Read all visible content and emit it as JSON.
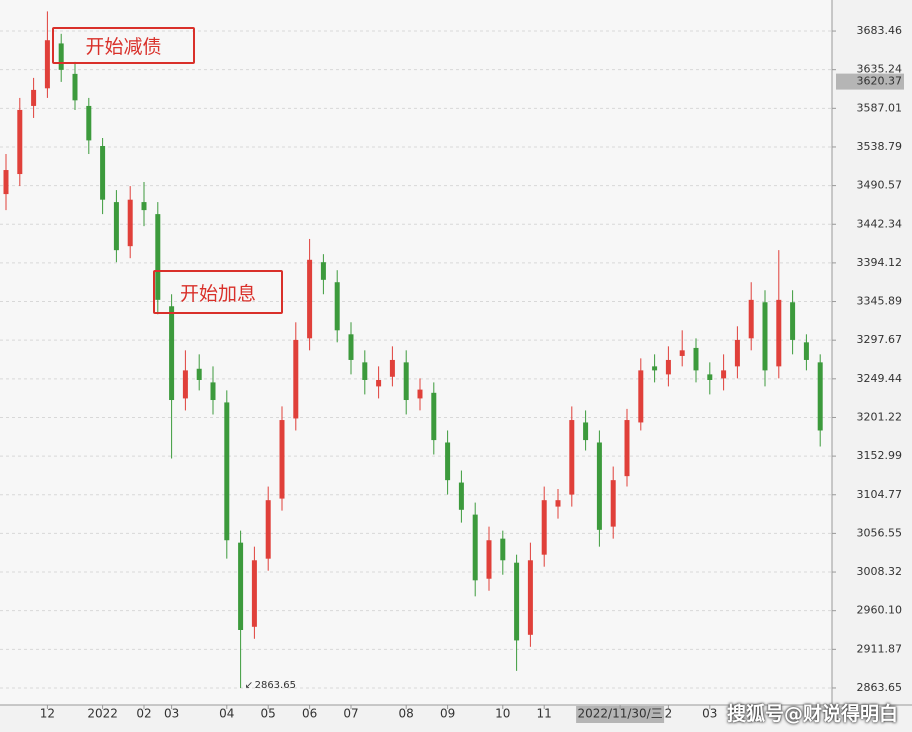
{
  "chart_data": {
    "type": "candlestick",
    "ylim": [
      2842.4,
      3722.2
    ],
    "yticks": [
      2863.65,
      2911.87,
      {
        "value": 2960.1,
        "label": "2960.10"
      },
      3008.32,
      3056.55,
      3104.77,
      3152.99,
      3201.22,
      3249.44,
      3297.67,
      3345.89,
      3394.12,
      3442.34,
      3490.57,
      3538.79,
      3587.01,
      3635.24,
      3683.46
    ],
    "grid": true,
    "up_color": "#e0403a",
    "down_color": "#3c9a3c",
    "open": [
      3480,
      3505,
      3590,
      3612,
      3668,
      3630,
      3590,
      3540,
      3470,
      3415,
      3470,
      3455,
      3340,
      3225,
      3262,
      3245,
      3220,
      3045,
      2940,
      3025,
      3100,
      3200,
      3300,
      3395,
      3370,
      3305,
      3270,
      3240,
      3252,
      3270,
      3225,
      3232,
      3170,
      3120,
      3080,
      3000,
      3050,
      3020,
      2930,
      3030,
      3090,
      3105,
      3195,
      3170,
      3065,
      3128,
      3195,
      3265,
      3255,
      3278,
      3288,
      3255,
      3250,
      3265,
      3300,
      3345,
      3265,
      3345,
      3295,
      3270
    ],
    "high": [
      3530,
      3600,
      3625,
      3708,
      3680,
      3645,
      3600,
      3550,
      3485,
      3490,
      3495,
      3470,
      3355,
      3285,
      3280,
      3265,
      3235,
      3060,
      3040,
      3115,
      3215,
      3320,
      3424,
      3405,
      3385,
      3320,
      3285,
      3265,
      3290,
      3285,
      3250,
      3245,
      3185,
      3135,
      3095,
      3065,
      3060,
      3030,
      3045,
      3115,
      3112,
      3215,
      3210,
      3185,
      3140,
      3212,
      3275,
      3280,
      3290,
      3310,
      3300,
      3270,
      3280,
      3315,
      3370,
      3360,
      3410,
      3360,
      3305,
      3280
    ],
    "low": [
      3460,
      3490,
      3575,
      3600,
      3620,
      3585,
      3530,
      3455,
      3395,
      3400,
      3440,
      3330,
      3150,
      3210,
      3235,
      3205,
      3025,
      2863.65,
      2925,
      3010,
      3085,
      3185,
      3285,
      3355,
      3295,
      3255,
      3230,
      3225,
      3240,
      3205,
      3210,
      3155,
      3105,
      3070,
      2978,
      2985,
      3005,
      2885,
      2915,
      3015,
      3075,
      3090,
      3160,
      3040,
      3050,
      3115,
      3185,
      3245,
      3240,
      3265,
      3245,
      3230,
      3235,
      3250,
      3285,
      3240,
      3250,
      3280,
      3260,
      3165
    ],
    "close": [
      3510,
      3585,
      3610,
      3672,
      3635,
      3597,
      3547,
      3473,
      3410,
      3473,
      3460,
      3348,
      3223,
      3260,
      3248,
      3223,
      3048,
      2936,
      3023,
      3098,
      3198,
      3298,
      3398,
      3373,
      3310,
      3273,
      3248,
      3248,
      3273,
      3223,
      3236,
      3173,
      3123,
      3086,
      2998,
      3048,
      3023,
      2923,
      3023,
      3098,
      3098,
      3198,
      3173,
      3061,
      3123,
      3198,
      3260,
      3260,
      3273,
      3285,
      3260,
      3248,
      3260,
      3298,
      3348,
      3260,
      3348,
      3298,
      3273,
      3185
    ],
    "x_labels": [
      {
        "label": "12",
        "index": 3
      },
      {
        "label": "2022",
        "index": 7
      },
      {
        "label": "02",
        "index": 10
      },
      {
        "label": "03",
        "index": 12
      },
      {
        "label": "04",
        "index": 16
      },
      {
        "label": "05",
        "index": 19
      },
      {
        "label": "06",
        "index": 22
      },
      {
        "label": "07",
        "index": 25
      },
      {
        "label": "08",
        "index": 29
      },
      {
        "label": "09",
        "index": 32
      },
      {
        "label": "10",
        "index": 36
      },
      {
        "label": "11",
        "index": 39
      },
      {
        "label": "2022/11/30/三",
        "index": 44.5
      },
      {
        "label": "2",
        "index": 48
      },
      {
        "label": "03",
        "index": 51
      }
    ],
    "price_marker": 3620.37,
    "low_marker": 2863.65,
    "annotations": [
      "开始减债",
      "开始加息"
    ],
    "watermark": "搜狐号@财说得明白"
  }
}
